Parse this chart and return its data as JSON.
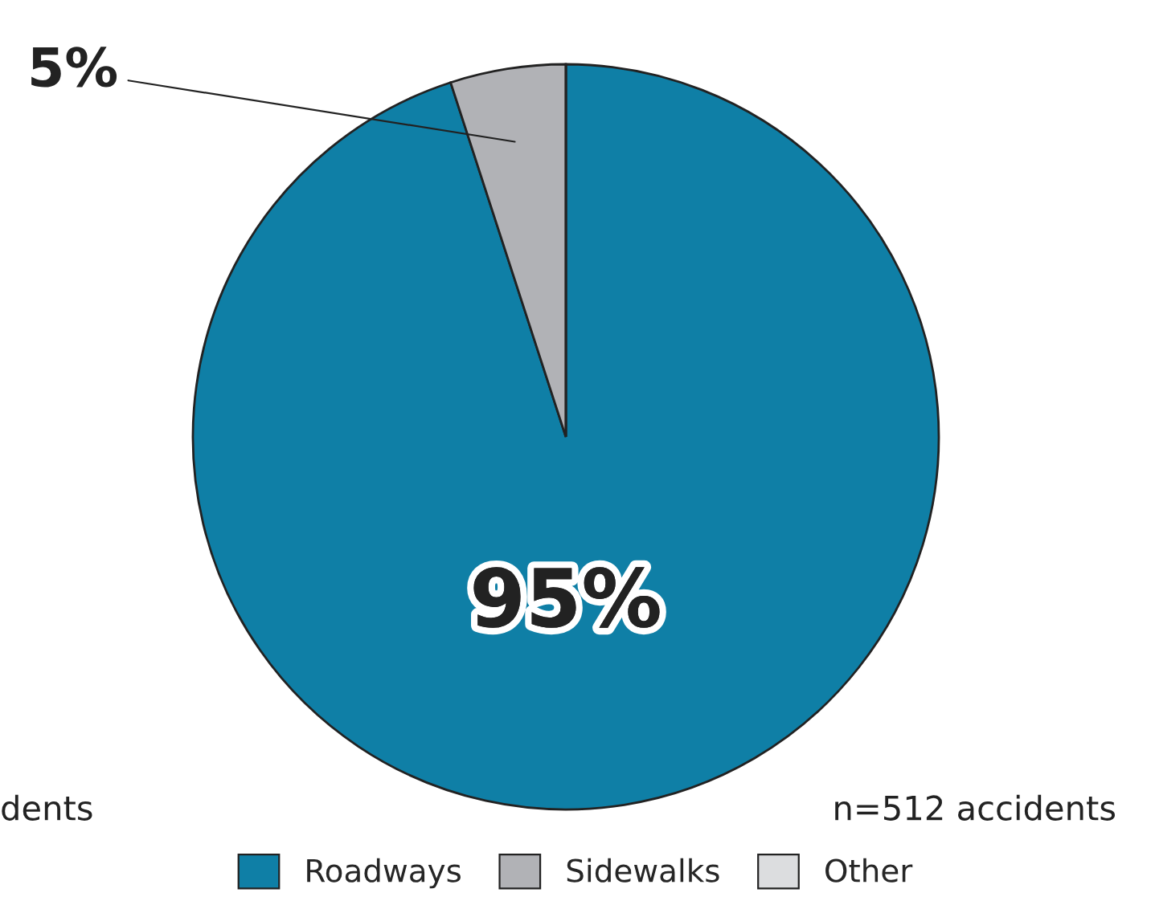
{
  "chart_data": {
    "type": "pie",
    "categories": [
      "Roadways",
      "Sidewalks",
      "Other"
    ],
    "values": [
      95,
      5,
      0
    ],
    "colors": [
      "#0f7fa6",
      "#b1b2b6",
      "#dcdddf"
    ],
    "value_labels": [
      "95%",
      "5%",
      null
    ],
    "annotations": [
      "dents",
      "n=512 accidents"
    ],
    "legend": "bottom"
  }
}
